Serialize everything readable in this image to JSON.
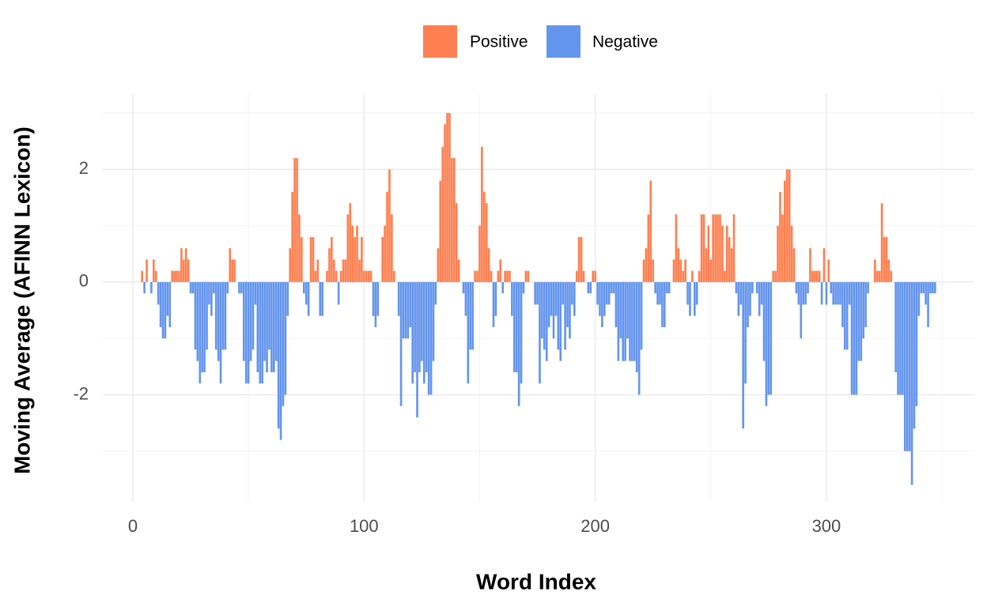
{
  "chart_data": {
    "type": "bar",
    "x_label": "Word Index",
    "y_label": "Moving Average (AFINN Lexicon)",
    "legend": [
      {
        "name": "Positive",
        "color": "#FF7F50"
      },
      {
        "name": "Negative",
        "color": "#6495ED"
      }
    ],
    "x": [
      1,
      2,
      3,
      4,
      5,
      6,
      7,
      8,
      9,
      10,
      11,
      12,
      13,
      14,
      15,
      16,
      17,
      18,
      19,
      20,
      21,
      22,
      23,
      24,
      25,
      26,
      27,
      28,
      29,
      30,
      31,
      32,
      33,
      34,
      35,
      36,
      37,
      38,
      39,
      40,
      41,
      42,
      43,
      44,
      45,
      46,
      47,
      48,
      49,
      50,
      51,
      52,
      53,
      54,
      55,
      56,
      57,
      58,
      59,
      60,
      61,
      62,
      63,
      64,
      65,
      66,
      67,
      68,
      69,
      70,
      71,
      72,
      73,
      74,
      75,
      76,
      77,
      78,
      79,
      80,
      81,
      82,
      83,
      84,
      85,
      86,
      87,
      88,
      89,
      90,
      91,
      92,
      93,
      94,
      95,
      96,
      97,
      98,
      99,
      100,
      101,
      102,
      103,
      104,
      105,
      106,
      107,
      108,
      109,
      110,
      111,
      112,
      113,
      114,
      115,
      116,
      117,
      118,
      119,
      120,
      121,
      122,
      123,
      124,
      125,
      126,
      127,
      128,
      129,
      130,
      131,
      132,
      133,
      134,
      135,
      136,
      137,
      138,
      139,
      140,
      141,
      142,
      143,
      144,
      145,
      146,
      147,
      148,
      149,
      150,
      151,
      152,
      153,
      154,
      155,
      156,
      157,
      158,
      159,
      160,
      161,
      162,
      163,
      164,
      165,
      166,
      167,
      168,
      169,
      170,
      171,
      172,
      173,
      174,
      175,
      176,
      177,
      178,
      179,
      180,
      181,
      182,
      183,
      184,
      185,
      186,
      187,
      188,
      189,
      190,
      191,
      192,
      193,
      194,
      195,
      196,
      197,
      198,
      199,
      200,
      201,
      202,
      203,
      204,
      205,
      206,
      207,
      208,
      209,
      210,
      211,
      212,
      213,
      214,
      215,
      216,
      217,
      218,
      219,
      220,
      221,
      222,
      223,
      224,
      225,
      226,
      227,
      228,
      229,
      230,
      231,
      232,
      233,
      234,
      235,
      236,
      237,
      238,
      239,
      240,
      241,
      242,
      243,
      244,
      245,
      246,
      247,
      248,
      249,
      250,
      251,
      252,
      253,
      254,
      255,
      256,
      257,
      258,
      259,
      260,
      261,
      262,
      263,
      264,
      265,
      266,
      267,
      268,
      269,
      270,
      271,
      272,
      273,
      274,
      275,
      276,
      277,
      278,
      279,
      280,
      281,
      282,
      283,
      284,
      285,
      286,
      287,
      288,
      289,
      290,
      291,
      292,
      293,
      294,
      295,
      296,
      297,
      298,
      299,
      300,
      301,
      302,
      303,
      304,
      305,
      306,
      307,
      308,
      309,
      310,
      311,
      312,
      313,
      314,
      315,
      316,
      317,
      318,
      319,
      320,
      321,
      322,
      323,
      324,
      325,
      326,
      327,
      328,
      329,
      330,
      331,
      332,
      333,
      334,
      335,
      336,
      337,
      338,
      339,
      340,
      341,
      342,
      343,
      344,
      345,
      346,
      347
    ],
    "values": [
      0,
      0,
      0,
      0.2,
      -0.2,
      0.4,
      0,
      -0.2,
      0.4,
      0.2,
      -0.4,
      -0.8,
      -1.0,
      -1.0,
      -0.6,
      -0.8,
      0.2,
      0.2,
      0.2,
      0.2,
      0.6,
      0.4,
      0.6,
      0.4,
      -0.2,
      -0.2,
      -1.2,
      -1.4,
      -1.8,
      -1.6,
      -1.6,
      -1.2,
      -0.4,
      -0.6,
      -0.2,
      -1.2,
      -1.4,
      -1.8,
      -1.2,
      -1.2,
      -0.2,
      0.6,
      0.4,
      0.4,
      0,
      -0.2,
      -0.2,
      -1.4,
      -1.8,
      -1.8,
      -1.4,
      -1.2,
      -0.4,
      -1.6,
      -1.8,
      -1.8,
      -1.4,
      -1.6,
      -1.2,
      -1.6,
      -1.6,
      -1.4,
      -2.6,
      -2.8,
      -2.2,
      -2.0,
      -0.6,
      0.6,
      1.6,
      2.2,
      2.2,
      1.2,
      0.8,
      -0.2,
      -0.4,
      -0.6,
      0.8,
      0.8,
      0.2,
      0.4,
      -0.6,
      -0.6,
      0,
      0.2,
      0.6,
      0.8,
      0.4,
      0.2,
      -0.4,
      0.2,
      0.4,
      0.4,
      1.2,
      1.4,
      1.0,
      0.8,
      1.0,
      0.4,
      0.8,
      0.2,
      0.2,
      0.2,
      0.2,
      -0.6,
      -0.8,
      -0.6,
      0,
      0.8,
      1.0,
      1.6,
      2.0,
      1.2,
      0.2,
      0,
      -0.6,
      -2.2,
      -1.0,
      -1.0,
      -1.0,
      -0.8,
      -1.8,
      -1.6,
      -2.4,
      -1.6,
      -1.4,
      -1.8,
      -1.6,
      -2.0,
      -2.0,
      -1.4,
      -0.4,
      0.6,
      1.8,
      2.4,
      2.8,
      3.0,
      3.0,
      2.2,
      2.2,
      1.4,
      0.4,
      0,
      -0.2,
      -0.6,
      -1.8,
      -1.2,
      -1.2,
      0.2,
      0.2,
      1.0,
      2.4,
      1.6,
      1.4,
      0.6,
      0.2,
      -0.8,
      -0.6,
      0.2,
      0.4,
      -0.2,
      0.2,
      0.2,
      0.2,
      -0.6,
      -1.6,
      -1.6,
      -2.2,
      -1.8,
      -0.2,
      0.2,
      0.2,
      0,
      0,
      -0.4,
      -0.4,
      -1.8,
      -1.0,
      -1.2,
      -1.4,
      -0.8,
      -0.6,
      -1.0,
      -0.6,
      -1.2,
      -1.4,
      -0.4,
      -1.2,
      -0.8,
      -1.0,
      -0.4,
      -0.6,
      0.2,
      0.8,
      0.8,
      0.2,
      0,
      -0.2,
      -0.2,
      0.2,
      0.2,
      -0.4,
      -0.6,
      -0.8,
      -0.6,
      -0.4,
      -0.4,
      -0.2,
      -0.2,
      -0.8,
      -1.4,
      -1.0,
      -1.4,
      -1.4,
      -1.0,
      -1.4,
      -1.4,
      -1.4,
      -1.6,
      -2.0,
      -1.2,
      0.4,
      0.6,
      1.2,
      1.8,
      0.4,
      -0.2,
      -0.4,
      -0.4,
      -0.8,
      -0.8,
      -0.2,
      -0.2,
      0,
      0.4,
      1.2,
      0.6,
      0.4,
      0.2,
      0.4,
      -0.4,
      -0.6,
      0.2,
      -0.6,
      -0.4,
      0.2,
      1.2,
      1.2,
      0.6,
      1.0,
      0.4,
      1.2,
      1.2,
      1.2,
      1.2,
      1.0,
      0.2,
      1.0,
      0.8,
      0.6,
      1.2,
      -0.2,
      -0.6,
      -0.4,
      -2.6,
      -1.8,
      -0.8,
      -0.6,
      -0.2,
      0,
      -0.2,
      -0.6,
      -0.4,
      -1.4,
      -2.2,
      -2.0,
      -2.0,
      0.2,
      0.2,
      1.0,
      1.6,
      1.2,
      1.8,
      2.0,
      2.0,
      1.0,
      0.6,
      -0.2,
      -0.4,
      -1.0,
      -0.4,
      -0.4,
      -0.2,
      0.6,
      0.2,
      0.2,
      0.2,
      0.2,
      -0.4,
      0.6,
      -0.4,
      0.4,
      -0.2,
      -0.4,
      -0.4,
      -0.4,
      -0.4,
      -0.8,
      -1.2,
      -1.2,
      -0.4,
      -2.0,
      -2.0,
      -2.0,
      -1.4,
      -1.4,
      -1.0,
      -0.8,
      -0.2,
      0,
      0,
      0.4,
      0.2,
      0.2,
      1.4,
      0.8,
      0.8,
      0.4,
      0.2,
      0,
      -1.6,
      -2.0,
      -2.0,
      -2.0,
      -3.0,
      -3.0,
      -3.0,
      -3.6,
      -2.6,
      -2.2,
      -0.6,
      -0.2,
      -0.2,
      -0.4,
      -0.8,
      -0.2,
      -0.2,
      -0.2
    ],
    "xlim": [
      -13,
      364
    ],
    "ylim": [
      -3.9,
      3.35
    ],
    "xticks": [
      0,
      100,
      200,
      300
    ],
    "yticks": [
      -2,
      0,
      2
    ],
    "x_minor_ticks": [
      50,
      150,
      250,
      350
    ],
    "y_minor_ticks": [
      -3,
      -1,
      1,
      3
    ],
    "grid": true
  }
}
